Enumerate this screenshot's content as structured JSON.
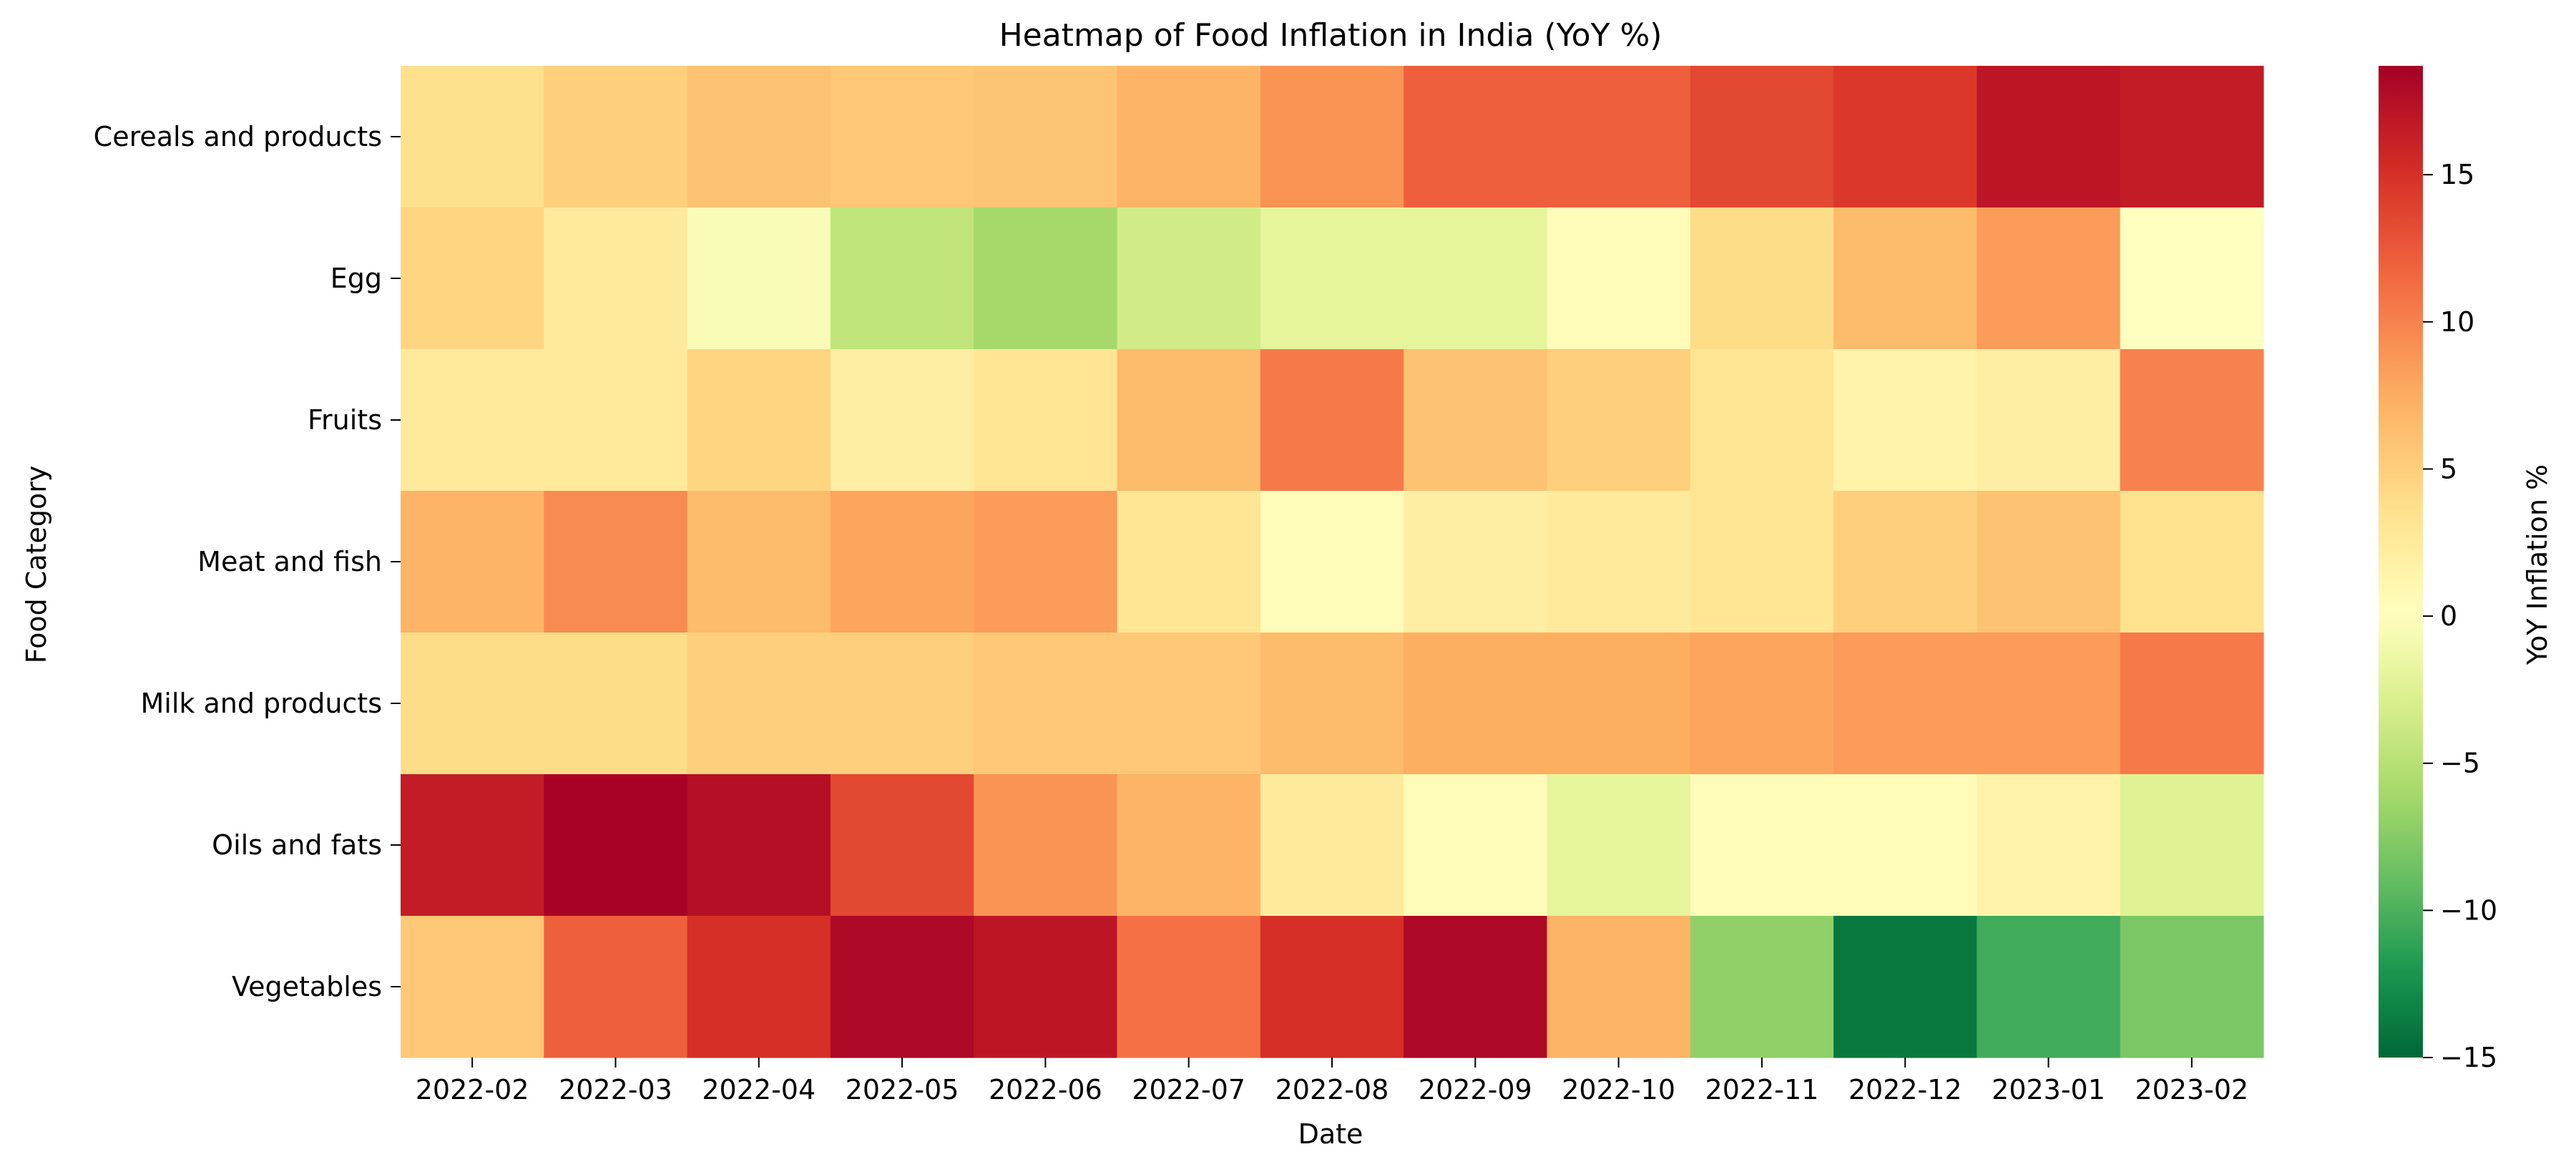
{
  "chart_data": {
    "type": "heatmap",
    "title": "Heatmap of Food Inflation in India (YoY %)",
    "xlabel": "Date",
    "ylabel": "Food Category",
    "x": [
      "2022-02",
      "2022-03",
      "2022-04",
      "2022-05",
      "2022-06",
      "2022-07",
      "2022-08",
      "2022-09",
      "2022-10",
      "2022-11",
      "2022-12",
      "2023-01",
      "2023-02"
    ],
    "y": [
      "Cereals and products",
      "Egg",
      "Fruits",
      "Meat and fish",
      "Milk and products",
      "Oils and fats",
      "Vegetables"
    ],
    "values": [
      [
        3.6,
        5.0,
        6.0,
        5.5,
        5.8,
        7.0,
        9.0,
        12.0,
        12.0,
        13.5,
        14.5,
        17.0,
        16.5
      ],
      [
        4.5,
        2.5,
        -0.5,
        -4.5,
        -6.0,
        -3.5,
        -2.0,
        -2.0,
        0.5,
        4.0,
        6.5,
        8.5,
        0.0
      ],
      [
        2.5,
        2.5,
        4.5,
        2.0,
        3.0,
        6.5,
        10.5,
        6.0,
        5.0,
        3.0,
        1.5,
        2.0,
        10.0
      ],
      [
        7.0,
        9.5,
        6.5,
        8.0,
        8.5,
        3.0,
        0.5,
        2.0,
        2.5,
        3.0,
        5.0,
        6.0,
        3.5
      ],
      [
        4.0,
        4.0,
        5.0,
        5.0,
        5.5,
        5.5,
        6.5,
        7.5,
        7.5,
        8.0,
        8.5,
        8.5,
        10.5
      ],
      [
        16.5,
        18.5,
        17.5,
        13.5,
        9.0,
        7.0,
        2.5,
        0.5,
        -2.0,
        0.5,
        0.5,
        1.5,
        -2.5
      ],
      [
        5.5,
        12.0,
        15.0,
        18.0,
        17.0,
        11.0,
        15.0,
        18.0,
        7.0,
        -7.0,
        -14.0,
        -10.5,
        -8.0
      ]
    ],
    "colorbar": {
      "label": "YoY Inflation %",
      "min": -15,
      "max": 18.7,
      "ticks": [
        "−15",
        "−10",
        "−5",
        "0",
        "5",
        "10",
        "15"
      ],
      "colormap": "RdYlGn_r"
    }
  }
}
